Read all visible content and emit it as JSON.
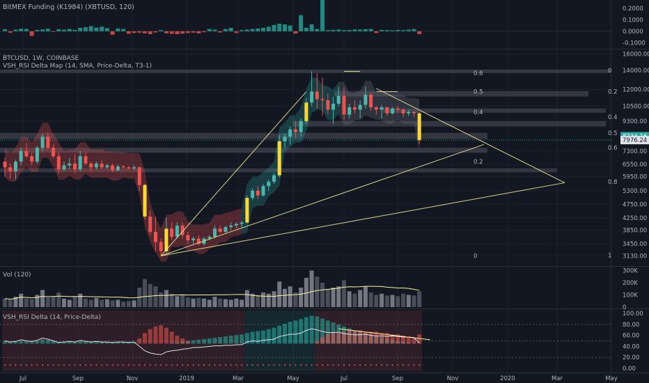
{
  "panels": {
    "funding": {
      "title": "BitMEX Funding (K1984) (XBTUSD, 120)",
      "ticks": [
        "0.2000",
        "0.1000",
        "0.0000",
        "-0.1000"
      ],
      "tick_values": [
        0.2,
        0.1,
        0.0,
        -0.1
      ],
      "range": [
        -0.14,
        0.26
      ],
      "bars": [
        0.018,
        -0.012,
        0.015,
        0.022,
        0.02,
        -0.04,
        0.012,
        0.016,
        0.022,
        -0.006,
        0.018,
        0.014,
        0.02,
        0.012,
        0.03,
        0.035,
        0.045,
        0.032,
        0.04,
        0.028,
        -0.03,
        0.024,
        0.02,
        -0.022,
        -0.015,
        -0.012,
        -0.018,
        -0.025,
        -0.01,
        0.01,
        -0.018,
        -0.022,
        -0.025,
        -0.02,
        -0.015,
        -0.012,
        -0.018,
        -0.008,
        0.02,
        0.015,
        -0.01,
        0.02,
        0.03,
        -0.015,
        0.01,
        0.015,
        0.02,
        0.025,
        0.03,
        0.04,
        0.055,
        0.065,
        0.06,
        0.05,
        -0.02,
        0.14,
        0.03,
        0.06,
        0.02,
        0.285,
        0.01,
        0.012,
        0.015,
        0.01,
        0.012,
        0.016,
        0.015,
        0.018,
        0.02,
        -0.015,
        0.012,
        0.01,
        0.008,
        0.012,
        0.01,
        0.015,
        0.02,
        -0.025
      ]
    },
    "price": {
      "title": "BTCUSD, 1W, COINBASE",
      "indicator_title": "VSH_RSI Delta Map (14, SMA, Price-Delta, T3-1)",
      "ticks": [
        "16000.00",
        "14000.00",
        "12000.00",
        "10500.00",
        "9300.00",
        "7300.00",
        "6550.00",
        "5950.00",
        "5300.00",
        "4750.00",
        "4250.00",
        "3850.00",
        "3450.00",
        "3130.00"
      ],
      "tick_values": [
        16000,
        14000,
        12000,
        10500,
        9300,
        7300,
        6550,
        5950,
        5300,
        4750,
        4250,
        3850,
        3450,
        3130
      ],
      "last_price_label": "8234.16",
      "current_price_label": "7976.24",
      "last_price": 8234.16,
      "current_price": 7976.24,
      "fib_left": [
        "0.6",
        "0.5",
        "0.4",
        "0.2",
        "0"
      ],
      "fib_left_values": [
        13700,
        11800,
        10000,
        6700,
        3130
      ],
      "fib_right": [
        "0",
        "0.2",
        "0.4",
        "0.5",
        "0.6",
        "0.8",
        "1"
      ],
      "fib_right_values": [
        14000,
        11800,
        9600,
        8450,
        7500,
        5700,
        3150
      ]
    },
    "volume": {
      "title": "Vol (120)",
      "ticks": [
        "300K",
        "200K",
        "100K",
        "0"
      ],
      "tick_values": [
        300000,
        200000,
        100000,
        0
      ],
      "range": [
        0,
        320000
      ]
    },
    "delta": {
      "title": "VSH_RSI Delta (14, Price-Delta)",
      "ticks": [
        "100.00",
        "80.00",
        "60.00",
        "40.00",
        "20.00",
        "0.00"
      ],
      "tick_values": [
        100,
        80,
        60,
        40,
        20,
        0
      ],
      "range": [
        -5,
        105
      ]
    }
  },
  "time_axis": [
    "Jul",
    "Sep",
    "Nov",
    "2019",
    "Mar",
    "May",
    "Jul",
    "Sep",
    "Nov",
    "2020",
    "Mar",
    "May"
  ],
  "chart_data": {
    "type": "candlestick",
    "symbol": "BTCUSD",
    "interval": "1W",
    "exchange": "COINBASE",
    "y_scale": "log",
    "ylim": [
      3130,
      16000
    ],
    "candles": [
      {
        "o": 6700,
        "h": 6900,
        "l": 5950,
        "c": 6400
      },
      {
        "o": 6400,
        "h": 6600,
        "l": 5850,
        "c": 6200
      },
      {
        "o": 6200,
        "h": 6800,
        "l": 5800,
        "c": 6700
      },
      {
        "o": 6700,
        "h": 7500,
        "l": 6500,
        "c": 7300
      },
      {
        "o": 7300,
        "h": 7800,
        "l": 6900,
        "c": 7000
      },
      {
        "o": 7000,
        "h": 7200,
        "l": 6500,
        "c": 6700
      },
      {
        "o": 6700,
        "h": 7600,
        "l": 6600,
        "c": 7500
      },
      {
        "o": 7500,
        "h": 8400,
        "l": 7300,
        "c": 8200
      },
      {
        "o": 8200,
        "h": 8500,
        "l": 7400,
        "c": 7500
      },
      {
        "o": 7500,
        "h": 7700,
        "l": 6900,
        "c": 7000
      },
      {
        "o": 7000,
        "h": 7200,
        "l": 6100,
        "c": 6300
      },
      {
        "o": 6300,
        "h": 6700,
        "l": 6200,
        "c": 6500
      },
      {
        "o": 6500,
        "h": 6900,
        "l": 6300,
        "c": 6600
      },
      {
        "o": 6600,
        "h": 7100,
        "l": 6100,
        "c": 6300
      },
      {
        "o": 6300,
        "h": 7300,
        "l": 6200,
        "c": 7000
      },
      {
        "o": 7000,
        "h": 7200,
        "l": 6500,
        "c": 6600
      },
      {
        "o": 6600,
        "h": 6700,
        "l": 6200,
        "c": 6400
      },
      {
        "o": 6400,
        "h": 6700,
        "l": 6300,
        "c": 6600
      },
      {
        "o": 6600,
        "h": 6800,
        "l": 6300,
        "c": 6400
      },
      {
        "o": 6400,
        "h": 6600,
        "l": 6300,
        "c": 6500
      },
      {
        "o": 6500,
        "h": 6600,
        "l": 6150,
        "c": 6250
      },
      {
        "o": 6250,
        "h": 6550,
        "l": 6200,
        "c": 6450
      },
      {
        "o": 6450,
        "h": 6500,
        "l": 6350,
        "c": 6400
      },
      {
        "o": 6400,
        "h": 6450,
        "l": 6300,
        "c": 6350
      },
      {
        "o": 6350,
        "h": 6500,
        "l": 6250,
        "c": 6400
      },
      {
        "o": 6400,
        "h": 6450,
        "l": 5300,
        "c": 5550
      },
      {
        "o": 5550,
        "h": 5600,
        "l": 4200,
        "c": 4300
      },
      {
        "o": 4300,
        "h": 4500,
        "l": 3700,
        "c": 3800
      },
      {
        "o": 3800,
        "h": 4300,
        "l": 3250,
        "c": 3500
      },
      {
        "o": 3500,
        "h": 3600,
        "l": 3130,
        "c": 3250
      },
      {
        "o": 3250,
        "h": 4250,
        "l": 3200,
        "c": 3900
      },
      {
        "o": 3900,
        "h": 4100,
        "l": 3550,
        "c": 3650
      },
      {
        "o": 3650,
        "h": 4100,
        "l": 3600,
        "c": 4000
      },
      {
        "o": 4000,
        "h": 4100,
        "l": 3600,
        "c": 3700
      },
      {
        "o": 3700,
        "h": 3800,
        "l": 3450,
        "c": 3550
      },
      {
        "o": 3550,
        "h": 3650,
        "l": 3450,
        "c": 3600
      },
      {
        "o": 3600,
        "h": 3700,
        "l": 3400,
        "c": 3450
      },
      {
        "o": 3450,
        "h": 3650,
        "l": 3400,
        "c": 3600
      },
      {
        "o": 3600,
        "h": 3700,
        "l": 3550,
        "c": 3650
      },
      {
        "o": 3650,
        "h": 4000,
        "l": 3600,
        "c": 3900
      },
      {
        "o": 3900,
        "h": 4000,
        "l": 3750,
        "c": 3800
      },
      {
        "o": 3800,
        "h": 4000,
        "l": 3750,
        "c": 3950
      },
      {
        "o": 3950,
        "h": 4100,
        "l": 3850,
        "c": 4000
      },
      {
        "o": 4000,
        "h": 4100,
        "l": 3900,
        "c": 4050
      },
      {
        "o": 4050,
        "h": 4150,
        "l": 3950,
        "c": 4100
      },
      {
        "o": 4100,
        "h": 5100,
        "l": 4050,
        "c": 5000
      },
      {
        "o": 5000,
        "h": 5400,
        "l": 4900,
        "c": 5300
      },
      {
        "o": 5300,
        "h": 5500,
        "l": 4950,
        "c": 5100
      },
      {
        "o": 5100,
        "h": 5600,
        "l": 5050,
        "c": 5500
      },
      {
        "o": 5500,
        "h": 5800,
        "l": 5300,
        "c": 5700
      },
      {
        "o": 5700,
        "h": 6100,
        "l": 5600,
        "c": 6000
      },
      {
        "o": 6000,
        "h": 8300,
        "l": 5900,
        "c": 7900
      },
      {
        "o": 7900,
        "h": 8400,
        "l": 7500,
        "c": 8200
      },
      {
        "o": 8200,
        "h": 8900,
        "l": 7700,
        "c": 8700
      },
      {
        "o": 8700,
        "h": 9300,
        "l": 8100,
        "c": 8500
      },
      {
        "o": 8500,
        "h": 9500,
        "l": 8200,
        "c": 9300
      },
      {
        "o": 9300,
        "h": 11200,
        "l": 9100,
        "c": 10800
      },
      {
        "o": 10800,
        "h": 13900,
        "l": 10500,
        "c": 11800
      },
      {
        "o": 11800,
        "h": 13700,
        "l": 10300,
        "c": 11100
      },
      {
        "o": 11100,
        "h": 13200,
        "l": 9700,
        "c": 11000
      },
      {
        "o": 11000,
        "h": 11600,
        "l": 9800,
        "c": 10200
      },
      {
        "o": 10200,
        "h": 11300,
        "l": 9100,
        "c": 10700
      },
      {
        "o": 10700,
        "h": 12300,
        "l": 10500,
        "c": 11400
      },
      {
        "o": 11400,
        "h": 12200,
        "l": 9400,
        "c": 9800
      },
      {
        "o": 9800,
        "h": 10700,
        "l": 9500,
        "c": 10400
      },
      {
        "o": 10400,
        "h": 11000,
        "l": 9900,
        "c": 10200
      },
      {
        "o": 10200,
        "h": 11000,
        "l": 9500,
        "c": 10600
      },
      {
        "o": 10600,
        "h": 12300,
        "l": 10300,
        "c": 11500
      },
      {
        "o": 11500,
        "h": 11700,
        "l": 10100,
        "c": 10400
      },
      {
        "o": 10400,
        "h": 10500,
        "l": 9800,
        "c": 10200
      },
      {
        "o": 10200,
        "h": 10600,
        "l": 9500,
        "c": 10400
      },
      {
        "o": 10400,
        "h": 10400,
        "l": 9700,
        "c": 9900
      },
      {
        "o": 9900,
        "h": 10400,
        "l": 9800,
        "c": 10300
      },
      {
        "o": 10300,
        "h": 10500,
        "l": 9900,
        "c": 10200
      },
      {
        "o": 10200,
        "h": 10300,
        "l": 9600,
        "c": 9900
      },
      {
        "o": 9900,
        "h": 10200,
        "l": 9700,
        "c": 10000
      },
      {
        "o": 10000,
        "h": 10100,
        "l": 9600,
        "c": 9900
      },
      {
        "o": 9900,
        "h": 10000,
        "l": 7700,
        "c": 7976
      }
    ],
    "volume": [
      70000,
      60000,
      85000,
      110000,
      70000,
      65000,
      100000,
      140000,
      80000,
      90000,
      120000,
      70000,
      60000,
      90000,
      110000,
      70000,
      60000,
      75000,
      60000,
      65000,
      55000,
      60000,
      45000,
      50000,
      55000,
      160000,
      230000,
      190000,
      170000,
      120000,
      140000,
      110000,
      90000,
      100000,
      80000,
      70000,
      75000,
      70000,
      60000,
      85000,
      70000,
      65000,
      60000,
      70000,
      60000,
      140000,
      110000,
      100000,
      120000,
      110000,
      130000,
      210000,
      150000,
      170000,
      120000,
      160000,
      240000,
      300000,
      250000,
      200000,
      150000,
      160000,
      170000,
      220000,
      130000,
      110000,
      140000,
      170000,
      120000,
      100000,
      110000,
      95000,
      100000,
      90000,
      110000,
      100000,
      95000,
      130000
    ],
    "delta": {
      "rsi": [
        50,
        48,
        49,
        52,
        50,
        49,
        51,
        55,
        53,
        50,
        47,
        48,
        49,
        48,
        51,
        49,
        48,
        49,
        48,
        48,
        47,
        48,
        48,
        47,
        48,
        40,
        32,
        28,
        26,
        25,
        30,
        32,
        33,
        35,
        36,
        38,
        38,
        39,
        40,
        41,
        41,
        42,
        42,
        43,
        43,
        48,
        50,
        49,
        51,
        52,
        53,
        58,
        60,
        62,
        62,
        64,
        69,
        72,
        70,
        67,
        65,
        65,
        66,
        63,
        62,
        61,
        61,
        62,
        60,
        59,
        59,
        58,
        59,
        58,
        57,
        57,
        56,
        46
      ],
      "delta_pos": [
        8,
        6,
        6,
        8,
        7,
        6,
        8,
        12,
        11,
        8,
        5,
        5,
        6,
        6,
        8,
        6,
        5,
        5,
        5,
        5,
        4,
        5,
        5,
        5,
        5,
        0,
        0,
        0,
        0,
        0,
        0,
        2,
        4,
        6,
        8,
        10,
        12,
        14,
        16,
        18,
        20,
        22,
        24,
        26,
        28,
        32,
        36,
        38,
        40,
        44,
        48,
        54,
        60,
        66,
        70,
        74,
        80,
        84,
        82,
        76,
        70,
        64,
        58,
        52,
        46,
        40,
        36,
        32,
        28,
        24,
        20,
        16,
        12,
        8,
        6,
        4,
        2,
        0
      ],
      "delta_neg": [
        0,
        0,
        0,
        0,
        0,
        0,
        0,
        0,
        0,
        0,
        0,
        0,
        0,
        0,
        0,
        0,
        0,
        0,
        0,
        0,
        0,
        0,
        0,
        0,
        0,
        8,
        16,
        22,
        26,
        28,
        24,
        18,
        12,
        8,
        4,
        0,
        0,
        0,
        0,
        0,
        0,
        0,
        0,
        0,
        0,
        0,
        0,
        0,
        0,
        0,
        0,
        0,
        0,
        0,
        0,
        0,
        0,
        0,
        4,
        10,
        14,
        16,
        16,
        18,
        20,
        20,
        20,
        18,
        18,
        18,
        16,
        16,
        14,
        14,
        12,
        10,
        8,
        14
      ]
    }
  }
}
